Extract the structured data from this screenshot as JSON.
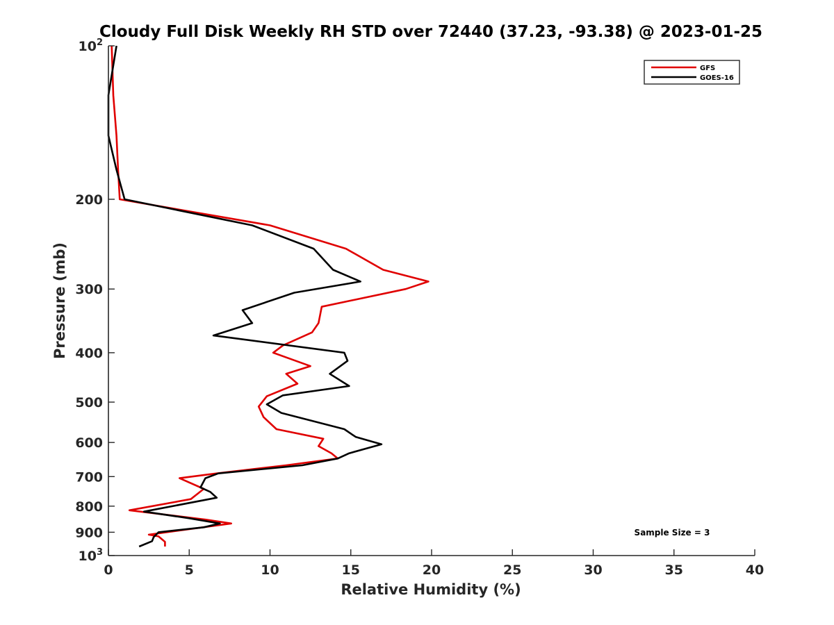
{
  "chart_data": {
    "type": "line",
    "title": "Cloudy Full Disk Weekly RH STD over 72440 (37.23, -93.38) @ 2023-01-25",
    "xlabel": "Relative Humidity (%)",
    "ylabel": "Pressure (mb)",
    "xlim": [
      0,
      40
    ],
    "ylim": [
      100,
      1000
    ],
    "y_scale": "log",
    "y_reversed": true,
    "x_ticks": [
      0,
      5,
      10,
      15,
      20,
      25,
      30,
      35,
      40
    ],
    "y_ticks": [
      {
        "value": 100,
        "label": "10",
        "sup": "2"
      },
      {
        "value": 200,
        "label": "200"
      },
      {
        "value": 300,
        "label": "300"
      },
      {
        "value": 400,
        "label": "400"
      },
      {
        "value": 500,
        "label": "500"
      },
      {
        "value": 600,
        "label": "600"
      },
      {
        "value": 700,
        "label": "700"
      },
      {
        "value": 800,
        "label": "800"
      },
      {
        "value": 900,
        "label": "900"
      },
      {
        "value": 1000,
        "label": "10",
        "sup": "3"
      }
    ],
    "legend_position": "top-right",
    "grid": false,
    "annotation": "Sample Size = 3",
    "series": [
      {
        "name": "GFS",
        "color": "#e00000",
        "points": [
          [
            0.2,
            100
          ],
          [
            0.3,
            125
          ],
          [
            0.5,
            150
          ],
          [
            0.6,
            175
          ],
          [
            0.7,
            200
          ],
          [
            10.0,
            225
          ],
          [
            14.7,
            250
          ],
          [
            17.0,
            275
          ],
          [
            19.8,
            290
          ],
          [
            18.4,
            300
          ],
          [
            13.2,
            325
          ],
          [
            13.0,
            350
          ],
          [
            12.6,
            365
          ],
          [
            10.8,
            387
          ],
          [
            10.2,
            400
          ],
          [
            12.5,
            425
          ],
          [
            11.0,
            440
          ],
          [
            11.7,
            460
          ],
          [
            9.8,
            487
          ],
          [
            9.3,
            510
          ],
          [
            9.6,
            535
          ],
          [
            10.4,
            565
          ],
          [
            13.3,
            590
          ],
          [
            13.0,
            610
          ],
          [
            13.8,
            630
          ],
          [
            14.2,
            645
          ],
          [
            11.0,
            665
          ],
          [
            6.7,
            690
          ],
          [
            4.4,
            705
          ],
          [
            5.9,
            740
          ],
          [
            5.1,
            775
          ],
          [
            1.3,
            815
          ],
          [
            6.0,
            850
          ],
          [
            7.6,
            865
          ],
          [
            2.5,
            910
          ],
          [
            3.1,
            917
          ],
          [
            3.5,
            940
          ],
          [
            3.5,
            960
          ]
        ]
      },
      {
        "name": "GOES-16",
        "color": "#000000",
        "points": [
          [
            0.5,
            100
          ],
          [
            0.0,
            125
          ],
          [
            0.0,
            150
          ],
          [
            0.5,
            175
          ],
          [
            1.0,
            200
          ],
          [
            8.9,
            225
          ],
          [
            12.7,
            250
          ],
          [
            13.9,
            275
          ],
          [
            15.6,
            290
          ],
          [
            11.5,
            305
          ],
          [
            8.3,
            330
          ],
          [
            8.9,
            350
          ],
          [
            6.5,
            370
          ],
          [
            14.6,
            400
          ],
          [
            14.8,
            415
          ],
          [
            13.7,
            440
          ],
          [
            14.9,
            465
          ],
          [
            10.8,
            485
          ],
          [
            9.8,
            505
          ],
          [
            10.7,
            525
          ],
          [
            14.6,
            565
          ],
          [
            15.3,
            585
          ],
          [
            16.9,
            605
          ],
          [
            14.9,
            630
          ],
          [
            14.2,
            645
          ],
          [
            12.0,
            665
          ],
          [
            6.8,
            690
          ],
          [
            6.0,
            705
          ],
          [
            5.7,
            735
          ],
          [
            6.3,
            750
          ],
          [
            6.7,
            770
          ],
          [
            2.2,
            820
          ],
          [
            5.0,
            845
          ],
          [
            6.9,
            865
          ],
          [
            5.9,
            880
          ],
          [
            3.1,
            900
          ],
          [
            2.8,
            920
          ],
          [
            2.7,
            937
          ],
          [
            1.9,
            960
          ]
        ]
      }
    ]
  }
}
